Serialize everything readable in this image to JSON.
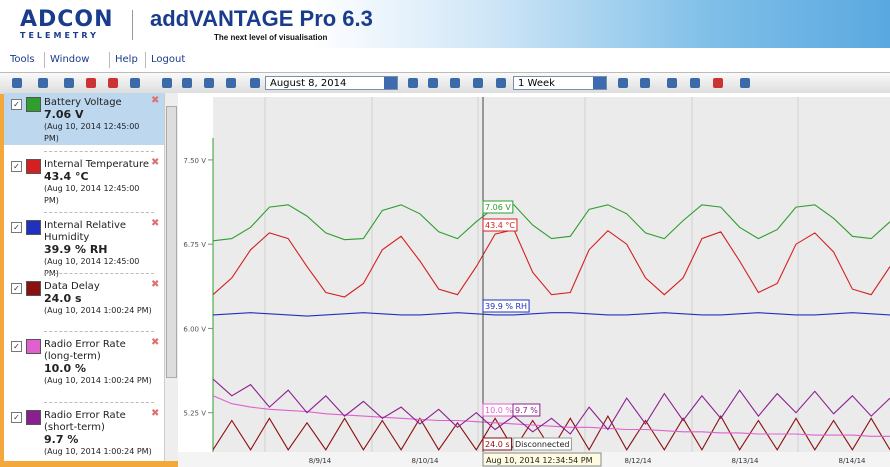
{
  "header": {
    "logo": "ADCON",
    "logo_sub": "TELEMETRY",
    "title": "addVANTAGE Pro 6.3",
    "tagline": "The next level of visualisation"
  },
  "menu": [
    "Tools",
    "Window",
    "Help",
    "Logout"
  ],
  "toolbar": {
    "date": "August 8, 2014",
    "period": "1 Week"
  },
  "sensors": [
    {
      "name": "Battery Voltage",
      "value": "7.06 V",
      "time": "(Aug 10, 2014 12:45:00 PM)"
    },
    {
      "name": "Internal Temperature",
      "value": "43.4 °C",
      "time": "(Aug 10, 2014 12:45:00 PM)"
    },
    {
      "name": "Internal Relative Humidity",
      "value": "39.9 % RH",
      "time": "(Aug 10, 2014 12:45:00 PM)"
    },
    {
      "name": "Data Delay",
      "value": "24.0 s",
      "time": "(Aug 10, 2014 1:00:24 PM)"
    },
    {
      "name": "Radio Error Rate (long-term)",
      "value": "10.0 %",
      "time": "(Aug 10, 2014 1:00:24 PM)"
    },
    {
      "name": "Radio Error Rate (short-term)",
      "value": "9.7 %",
      "time": "(Aug 10, 2014 1:00:24 PM)"
    }
  ],
  "chart_data": {
    "type": "line",
    "ylim": [
      4.9,
      8.06
    ],
    "yticks": [
      {
        "value": 5.25,
        "label": "5.25 V"
      },
      {
        "value": 6.0,
        "label": "6.00 V"
      },
      {
        "value": 6.75,
        "label": "6.75 V"
      },
      {
        "value": 7.5,
        "label": "7.50 V"
      }
    ],
    "x_labels": [
      "8/9/14",
      "8/10/14",
      "8/12/14",
      "8/13/14",
      "8/14/14"
    ],
    "series": [
      {
        "color": "#2e9e2e",
        "values": [
          6.78,
          6.8,
          6.9,
          7.08,
          7.1,
          7.0,
          6.85,
          6.79,
          6.8,
          7.05,
          7.1,
          7.02,
          6.86,
          6.8,
          6.95,
          7.08,
          7.1,
          6.92,
          6.8,
          6.82,
          7.06,
          7.1,
          7.02,
          6.85,
          6.8,
          6.96,
          7.1,
          7.08,
          6.9,
          6.8,
          6.88,
          7.08,
          7.1,
          6.98,
          6.82,
          6.8,
          6.95
        ]
      },
      {
        "color": "#d42020",
        "values": [
          6.3,
          6.45,
          6.7,
          6.85,
          6.8,
          6.55,
          6.32,
          6.28,
          6.4,
          6.7,
          6.82,
          6.6,
          6.35,
          6.3,
          6.55,
          6.84,
          6.88,
          6.5,
          6.3,
          6.32,
          6.7,
          6.87,
          6.75,
          6.45,
          6.3,
          6.45,
          6.8,
          6.86,
          6.6,
          6.32,
          6.4,
          6.75,
          6.85,
          6.68,
          6.35,
          6.3,
          6.55
        ]
      },
      {
        "color": "#2030c0",
        "values": [
          6.12,
          6.13,
          6.14,
          6.13,
          6.12,
          6.11,
          6.12,
          6.13,
          6.14,
          6.13,
          6.12,
          6.12,
          6.13,
          6.14,
          6.13,
          6.12,
          6.12,
          6.13,
          6.14,
          6.14,
          6.13,
          6.12,
          6.12,
          6.13,
          6.14,
          6.13,
          6.12,
          6.12,
          6.13,
          6.14,
          6.13,
          6.12,
          6.12,
          6.13,
          6.14,
          6.13,
          6.12
        ]
      },
      {
        "color": "#8b1010",
        "values": [
          4.92,
          5.18,
          4.92,
          5.2,
          4.92,
          5.16,
          4.92,
          5.2,
          4.92,
          5.18,
          4.92,
          5.2,
          4.92,
          5.16,
          4.92,
          5.2,
          4.92,
          5.18,
          4.92,
          5.2,
          4.92,
          5.22,
          4.92,
          5.18,
          4.92,
          5.2,
          4.92,
          5.22,
          4.92,
          5.18,
          4.92,
          5.2,
          4.92,
          5.18,
          4.92,
          5.2,
          4.92
        ]
      },
      {
        "color": "#e060d0",
        "values": [
          5.4,
          5.33,
          5.3,
          5.28,
          5.27,
          5.26,
          5.24,
          5.23,
          5.22,
          5.21,
          5.2,
          5.19,
          5.18,
          5.18,
          5.17,
          5.16,
          5.15,
          5.14,
          5.13,
          5.12,
          5.12,
          5.11,
          5.1,
          5.1,
          5.09,
          5.08,
          5.08,
          5.07,
          5.07,
          5.06,
          5.06,
          5.06,
          5.05,
          5.05,
          5.05,
          5.04,
          5.04
        ]
      },
      {
        "color": "#8a2090",
        "values": [
          5.55,
          5.4,
          5.5,
          5.3,
          5.45,
          5.25,
          5.4,
          5.22,
          5.35,
          5.2,
          5.3,
          5.15,
          5.28,
          5.12,
          5.25,
          5.1,
          5.22,
          5.08,
          5.2,
          5.06,
          5.3,
          5.1,
          5.38,
          5.15,
          5.42,
          5.18,
          5.4,
          5.2,
          5.45,
          5.22,
          5.42,
          5.25,
          5.44,
          5.24,
          5.4,
          5.22,
          5.38
        ]
      }
    ],
    "cursor": {
      "time": "Aug 10, 2014 12:34:54 PM",
      "status": "Disconnected",
      "labels": [
        "7.06 V",
        "43.4 °C",
        "39.9 % RH",
        "24.0 s",
        "10.0 %",
        "9.7 %"
      ]
    }
  }
}
